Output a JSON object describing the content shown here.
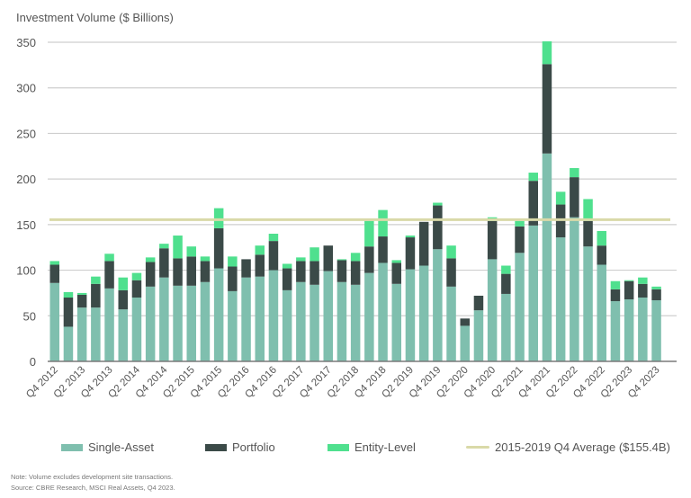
{
  "chart_data": {
    "type": "bar",
    "stacked": true,
    "title": "",
    "ylabel": "Investment Volume ($ Billions)",
    "xlabel": "",
    "ylim": [
      0,
      350
    ],
    "yticks": [
      0,
      50,
      100,
      150,
      200,
      250,
      300,
      350
    ],
    "grid": true,
    "legend_position": "bottom",
    "categories": [
      "Q4 2012",
      "Q1 2013",
      "Q2 2013",
      "Q3 2013",
      "Q4 2013",
      "Q1 2014",
      "Q2 2014",
      "Q3 2014",
      "Q4 2014",
      "Q1 2015",
      "Q2 2015",
      "Q3 2015",
      "Q4 2015",
      "Q1 2016",
      "Q2 2016",
      "Q3 2016",
      "Q4 2016",
      "Q1 2017",
      "Q2 2017",
      "Q3 2017",
      "Q4 2017",
      "Q1 2018",
      "Q2 2018",
      "Q3 2018",
      "Q4 2018",
      "Q1 2019",
      "Q2 2019",
      "Q3 2019",
      "Q4 2019",
      "Q1 2020",
      "Q2 2020",
      "Q3 2020",
      "Q4 2020",
      "Q1 2021",
      "Q2 2021",
      "Q3 2021",
      "Q4 2021",
      "Q1 2022",
      "Q2 2022",
      "Q3 2022",
      "Q4 2022",
      "Q1 2023",
      "Q2 2023",
      "Q3 2023",
      "Q4 2023"
    ],
    "tick_labels": [
      "Q4 2012",
      "Q2 2013",
      "Q4 2013",
      "Q2 2014",
      "Q4 2014",
      "Q2 2015",
      "Q4 2015",
      "Q2 2016",
      "Q4 2016",
      "Q2 2017",
      "Q4 2017",
      "Q2 2018",
      "Q4 2018",
      "Q2 2019",
      "Q4 2019",
      "Q2 2020",
      "Q4 2020",
      "Q2 2021",
      "Q4 2021",
      "Q2 2022",
      "Q4 2022",
      "Q2 2023",
      "Q4 2023"
    ],
    "series": [
      {
        "name": "Single-Asset",
        "color": "#7fbfae",
        "values": [
          86,
          38,
          59,
          59,
          80,
          57,
          70,
          82,
          92,
          83,
          83,
          87,
          102,
          77,
          92,
          93,
          100,
          78,
          87,
          84,
          99,
          87,
          84,
          97,
          108,
          85,
          101,
          105,
          123,
          82,
          39,
          56,
          112,
          74,
          119,
          149,
          228,
          136,
          158,
          126,
          106,
          66,
          68,
          70,
          67
        ]
      },
      {
        "name": "Portfolio",
        "color": "#3b4a48",
        "values": [
          20,
          32,
          14,
          26,
          30,
          21,
          19,
          27,
          32,
          30,
          32,
          23,
          44,
          27,
          20,
          24,
          32,
          24,
          23,
          26,
          28,
          24,
          26,
          29,
          29,
          23,
          35,
          48,
          48,
          31,
          8,
          16,
          42,
          22,
          29,
          49,
          98,
          36,
          44,
          28,
          21,
          13,
          20,
          15,
          12
        ]
      },
      {
        "name": "Entity-Level",
        "color": "#4fe08e",
        "values": [
          4,
          6,
          2,
          8,
          8,
          14,
          8,
          5,
          5,
          25,
          11,
          5,
          22,
          11,
          0,
          10,
          8,
          5,
          4,
          15,
          0,
          1,
          9,
          28,
          29,
          3,
          2,
          0,
          3,
          14,
          0,
          0,
          4,
          9,
          6,
          9,
          25,
          14,
          10,
          24,
          16,
          9,
          1,
          7,
          3
        ]
      }
    ],
    "reference_line": {
      "name": "2015-2019 Q4 Average ($155.4B)",
      "value": 155.4,
      "color": "#d9d9a8"
    }
  },
  "legend": [
    {
      "label": "Single-Asset",
      "color": "#7fbfae"
    },
    {
      "label": "Portfolio",
      "color": "#3b4a48"
    },
    {
      "label": "Entity-Level",
      "color": "#4fe08e"
    },
    {
      "label": "2015-2019 Q4 Average ($155.4B)",
      "color": "#d9d9a8"
    }
  ],
  "notes": {
    "note": "Note: Volume excludes development site transactions.",
    "source": "Source: CBRE Research, MSCI Real Assets, Q4 2023."
  }
}
